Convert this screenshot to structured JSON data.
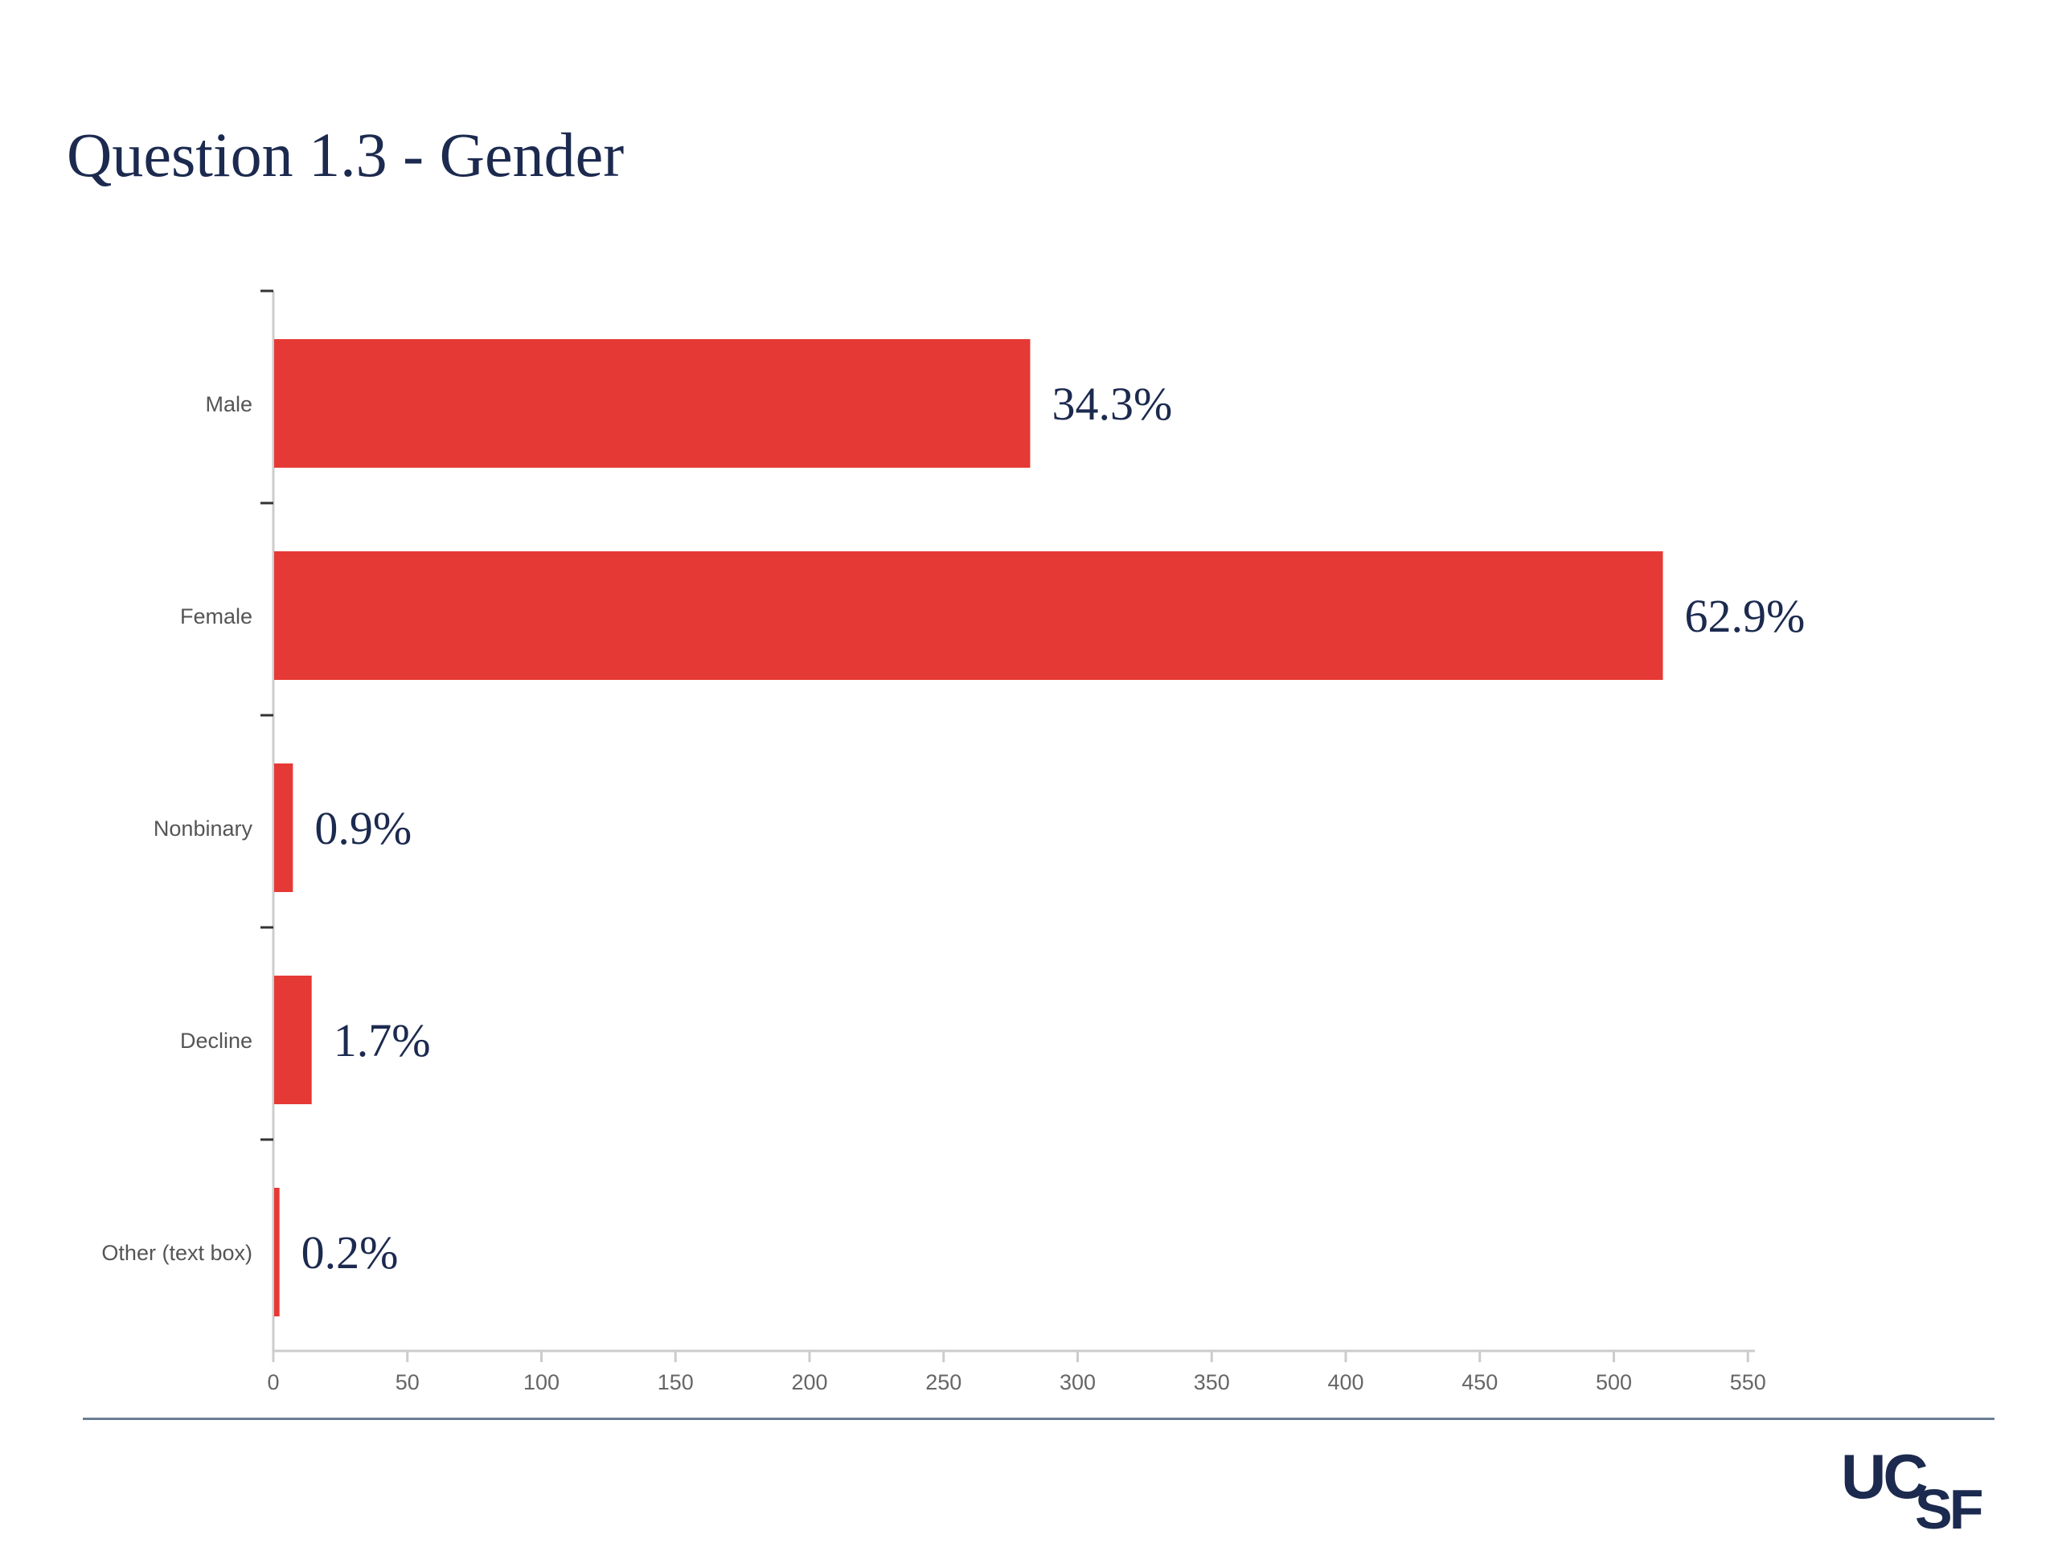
{
  "page": {
    "title": "Question 1.3 - Gender",
    "logo_text": {
      "uc": "UC",
      "sf": "SF"
    }
  },
  "colors": {
    "bar": "#e53935",
    "title": "#1c2a4f",
    "data_label": "#1c2a4f",
    "axis": "#cccccc"
  },
  "chart_data": {
    "type": "bar",
    "orientation": "horizontal",
    "title": "",
    "xlabel": "",
    "ylabel": "",
    "categories": [
      "Male",
      "Female",
      "Nonbinary",
      "Decline",
      "Other (text box)"
    ],
    "values": [
      282,
      518,
      7,
      14,
      2
    ],
    "data_labels": [
      "34.3%",
      "62.9%",
      "0.9%",
      "1.7%",
      "0.2%"
    ],
    "xlim": [
      0,
      570
    ],
    "xticks": [
      0,
      50,
      100,
      150,
      200,
      250,
      300,
      350,
      400,
      450,
      500,
      550
    ],
    "grid": false,
    "legend": "none"
  }
}
